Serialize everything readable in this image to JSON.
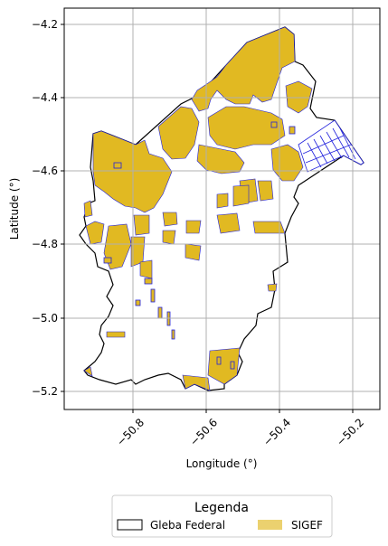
{
  "map": {
    "xlabel": "Longitude (°)",
    "ylabel": "Latitude (°)",
    "x_ticks": [
      "−50.8",
      "−50.6",
      "−50.4",
      "−50.2"
    ],
    "y_ticks": [
      "−4.2",
      "−4.4",
      "−4.6",
      "−4.8",
      "−5.0",
      "−5.2"
    ],
    "x_range": [
      -50.97,
      -50.13
    ],
    "y_range": [
      -5.25,
      -4.16
    ],
    "grid": true
  },
  "legend": {
    "title": "Legenda",
    "placement": "bottom-center",
    "items": [
      {
        "label": "Gleba Federal",
        "style": "outline",
        "color": "#000000"
      },
      {
        "label": "SIGEF",
        "style": "fill",
        "color": "#E1B922"
      }
    ]
  },
  "colors": {
    "sigef_fill": "#E1B922",
    "sigef_edge": "#2222DD",
    "gleba_edge": "#000000",
    "grid": "#B0B0B0"
  }
}
